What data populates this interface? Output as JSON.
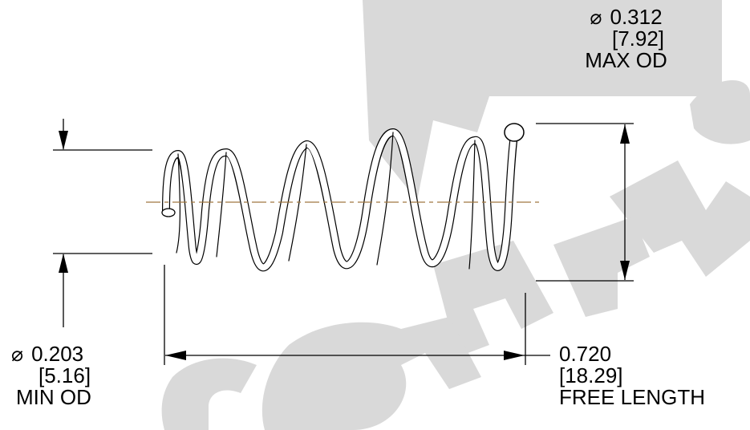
{
  "watermark": {
    "text": "Century",
    "color": "#d9d9d9"
  },
  "spring": {
    "wire_color": "#000000",
    "centerline_color": "#a07840"
  },
  "dimensions": {
    "max_od": {
      "symbol": "⌀",
      "inches": "0.312",
      "mm": "[7.92]",
      "caption": "MAX OD"
    },
    "min_od": {
      "symbol": "⌀",
      "inches": "0.203",
      "mm": "[5.16]",
      "caption": "MIN OD"
    },
    "free_length": {
      "inches": "0.720",
      "mm": "[18.29]",
      "caption": "FREE LENGTH"
    }
  }
}
